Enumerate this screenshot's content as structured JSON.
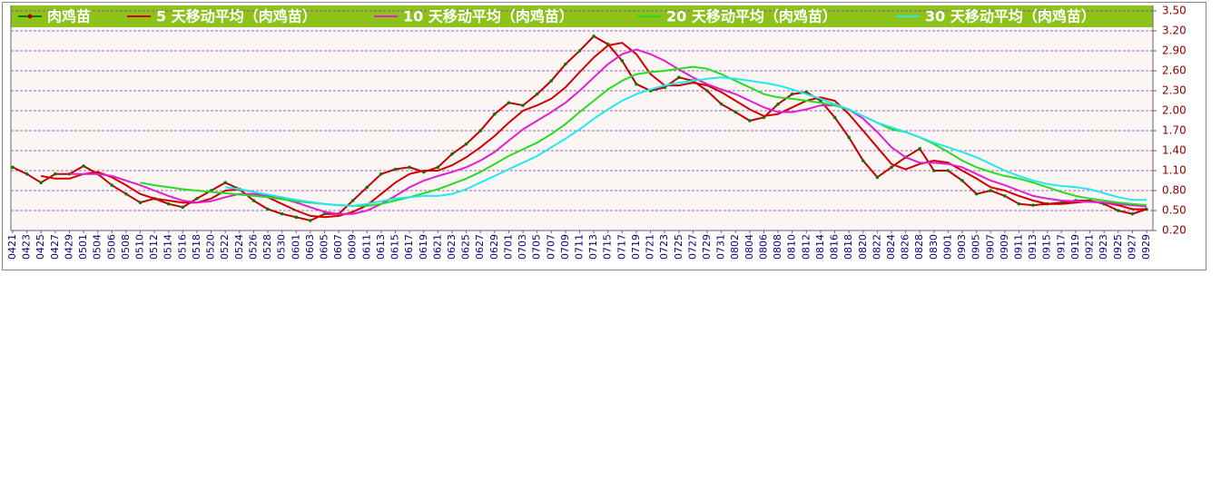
{
  "chart_data": {
    "type": "line",
    "categories": [
      "0421",
      "0423",
      "0425",
      "0427",
      "0429",
      "0501",
      "0504",
      "0506",
      "0508",
      "0510",
      "0512",
      "0514",
      "0516",
      "0518",
      "0520",
      "0522",
      "0524",
      "0526",
      "0528",
      "0530",
      "0601",
      "0603",
      "0605",
      "0607",
      "0609",
      "0611",
      "0613",
      "0615",
      "0617",
      "0619",
      "0621",
      "0623",
      "0625",
      "0627",
      "0629",
      "0701",
      "0703",
      "0705",
      "0707",
      "0709",
      "0711",
      "0713",
      "0715",
      "0717",
      "0719",
      "0721",
      "0723",
      "0725",
      "0727",
      "0729",
      "0731",
      "0802",
      "0804",
      "0806",
      "0808",
      "0810",
      "0812",
      "0814",
      "0816",
      "0818",
      "0820",
      "0822",
      "0824",
      "0826",
      "0828",
      "0830",
      "0901",
      "0903",
      "0905",
      "0907",
      "0909",
      "0911",
      "0913",
      "0915",
      "0917",
      "0919",
      "0921",
      "0923",
      "0925",
      "0927",
      "0929"
    ],
    "series": [
      {
        "name": "肉鸡苗",
        "color": "#c00000",
        "marker_color": "#008000",
        "values": [
          1.15,
          1.05,
          0.92,
          1.05,
          1.05,
          1.17,
          1.05,
          0.88,
          0.75,
          0.62,
          0.68,
          0.6,
          0.55,
          0.68,
          0.8,
          0.92,
          0.82,
          0.65,
          0.52,
          0.45,
          0.4,
          0.35,
          0.45,
          0.45,
          0.65,
          0.85,
          1.05,
          1.12,
          1.15,
          1.08,
          1.15,
          1.35,
          1.5,
          1.7,
          1.95,
          2.12,
          2.08,
          2.25,
          2.45,
          2.7,
          2.9,
          3.12,
          3.0,
          2.75,
          2.4,
          2.3,
          2.35,
          2.5,
          2.45,
          2.3,
          2.1,
          1.98,
          1.85,
          1.9,
          2.1,
          2.25,
          2.28,
          2.15,
          1.9,
          1.6,
          1.25,
          1.0,
          1.15,
          1.3,
          1.43,
          1.1,
          1.1,
          0.95,
          0.75,
          0.8,
          0.72,
          0.6,
          0.58,
          0.6,
          0.62,
          0.65,
          0.65,
          0.6,
          0.5,
          0.45,
          0.52
        ]
      },
      {
        "name": "5 天移动平均（肉鸡苗）",
        "color": "#d00000",
        "values": [
          null,
          null,
          1.02,
          0.98,
          0.98,
          1.05,
          1.08,
          1.0,
          0.88,
          0.75,
          0.68,
          0.65,
          0.62,
          0.62,
          0.68,
          0.8,
          0.82,
          0.78,
          0.7,
          0.6,
          0.5,
          0.42,
          0.4,
          0.42,
          0.48,
          0.58,
          0.75,
          0.92,
          1.05,
          1.1,
          1.1,
          1.18,
          1.3,
          1.45,
          1.62,
          1.82,
          2.0,
          2.08,
          2.18,
          2.35,
          2.58,
          2.8,
          2.98,
          3.02,
          2.85,
          2.55,
          2.38,
          2.38,
          2.42,
          2.38,
          2.28,
          2.15,
          2.02,
          1.92,
          1.95,
          2.05,
          2.15,
          2.2,
          2.15,
          1.95,
          1.7,
          1.45,
          1.2,
          1.12,
          1.2,
          1.25,
          1.22,
          1.1,
          0.98,
          0.85,
          0.8,
          0.72,
          0.65,
          0.6,
          0.6,
          0.62,
          0.64,
          0.62,
          0.58,
          0.52,
          0.52
        ]
      },
      {
        "name": "10 天移动平均（肉鸡苗）",
        "color": "#e020d0",
        "values": [
          null,
          null,
          null,
          null,
          1.05,
          1.05,
          1.05,
          1.02,
          0.95,
          0.88,
          0.8,
          0.72,
          0.65,
          0.62,
          0.64,
          0.7,
          0.75,
          0.75,
          0.72,
          0.68,
          0.62,
          0.55,
          0.48,
          0.45,
          0.45,
          0.5,
          0.6,
          0.72,
          0.85,
          0.95,
          1.02,
          1.08,
          1.15,
          1.25,
          1.38,
          1.55,
          1.72,
          1.85,
          1.98,
          2.12,
          2.3,
          2.5,
          2.7,
          2.85,
          2.92,
          2.85,
          2.75,
          2.62,
          2.5,
          2.4,
          2.32,
          2.25,
          2.15,
          2.05,
          1.98,
          1.98,
          2.02,
          2.08,
          2.08,
          2.02,
          1.88,
          1.68,
          1.45,
          1.3,
          1.22,
          1.22,
          1.2,
          1.15,
          1.05,
          0.95,
          0.88,
          0.8,
          0.72,
          0.68,
          0.65,
          0.64,
          0.63,
          0.62,
          0.6,
          0.58,
          0.56
        ]
      },
      {
        "name": "20 天移动平均（肉鸡苗）",
        "color": "#22dd22",
        "values": [
          null,
          null,
          null,
          null,
          null,
          null,
          null,
          null,
          null,
          0.92,
          0.88,
          0.85,
          0.82,
          0.8,
          0.78,
          0.76,
          0.74,
          0.72,
          0.7,
          0.67,
          0.64,
          0.62,
          0.6,
          0.58,
          0.57,
          0.57,
          0.6,
          0.65,
          0.7,
          0.76,
          0.82,
          0.9,
          0.98,
          1.08,
          1.2,
          1.32,
          1.42,
          1.52,
          1.65,
          1.8,
          1.98,
          2.15,
          2.32,
          2.45,
          2.55,
          2.58,
          2.6,
          2.63,
          2.66,
          2.63,
          2.55,
          2.45,
          2.35,
          2.25,
          2.2,
          2.18,
          2.15,
          2.12,
          2.08,
          2.02,
          1.92,
          1.82,
          1.72,
          1.68,
          1.6,
          1.5,
          1.38,
          1.25,
          1.15,
          1.08,
          1.02,
          0.98,
          0.92,
          0.85,
          0.78,
          0.72,
          0.68,
          0.65,
          0.62,
          0.6,
          0.58
        ]
      },
      {
        "name": "30 天移动平均（肉鸡苗）",
        "color": "#22e8f0",
        "values": [
          null,
          null,
          null,
          null,
          null,
          null,
          null,
          null,
          null,
          null,
          null,
          null,
          null,
          null,
          null,
          0.85,
          0.82,
          0.78,
          0.74,
          0.7,
          0.66,
          0.63,
          0.6,
          0.58,
          0.57,
          0.6,
          0.64,
          0.68,
          0.7,
          0.72,
          0.72,
          0.75,
          0.82,
          0.92,
          1.02,
          1.12,
          1.22,
          1.32,
          1.45,
          1.58,
          1.72,
          1.88,
          2.02,
          2.15,
          2.25,
          2.32,
          2.38,
          2.42,
          2.45,
          2.48,
          2.5,
          2.48,
          2.45,
          2.42,
          2.38,
          2.32,
          2.25,
          2.18,
          2.1,
          2.02,
          1.92,
          1.82,
          1.75,
          1.68,
          1.6,
          1.52,
          1.45,
          1.38,
          1.3,
          1.2,
          1.1,
          1.02,
          0.95,
          0.9,
          0.87,
          0.85,
          0.82,
          0.76,
          0.7,
          0.66,
          0.66
        ]
      }
    ],
    "ylim": [
      0.2,
      3.5
    ],
    "yticks": [
      {
        "value": 0.2,
        "label": "0.20"
      },
      {
        "value": 0.5,
        "label": "0.50"
      },
      {
        "value": 0.8,
        "label": "0.80"
      },
      {
        "value": 1.1,
        "label": "1.10"
      },
      {
        "value": 1.4,
        "label": "1.40"
      },
      {
        "value": 1.7,
        "label": "1.70"
      },
      {
        "value": 2,
        "label": "2.00"
      },
      {
        "value": 2.3,
        "label": "2.30"
      },
      {
        "value": 2.6,
        "label": "2.60"
      },
      {
        "value": 2.9,
        "label": "2.90"
      },
      {
        "value": 3.2,
        "label": "3.20"
      },
      {
        "value": 3.5,
        "label": "3.50"
      }
    ],
    "grid": true
  }
}
